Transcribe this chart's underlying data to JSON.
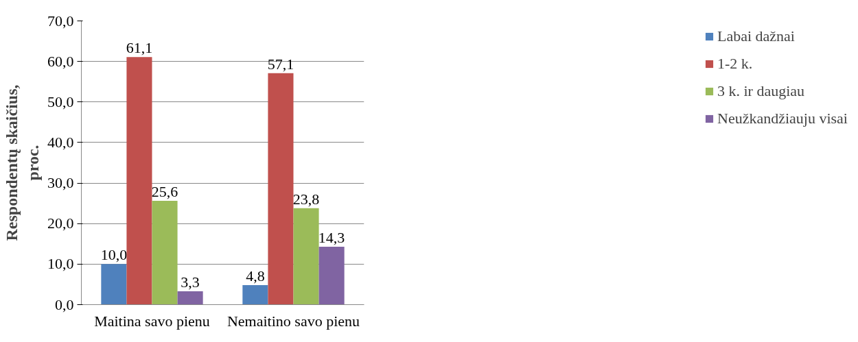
{
  "chart_data": {
    "type": "bar",
    "ylabel": "Respondentų skaičius, proc.",
    "categories": [
      "Maitina savo pienu",
      "Nemaitino savo pienu"
    ],
    "series": [
      {
        "name": "Labai dažnai",
        "color": "#4f81bd",
        "values": [
          10.0,
          4.8
        ],
        "value_labels": [
          "10,0",
          "4,8"
        ]
      },
      {
        "name": "1-2 k.",
        "color": "#c0504d",
        "values": [
          61.1,
          57.1
        ],
        "value_labels": [
          "61,1",
          "57,1"
        ]
      },
      {
        "name": "3 k. ir daugiau",
        "color": "#9bbb59",
        "values": [
          25.6,
          23.8
        ],
        "value_labels": [
          "25,6",
          "23,8"
        ]
      },
      {
        "name": "Neužkandžiauju visai",
        "color": "#8064a2",
        "values": [
          3.3,
          14.3
        ],
        "value_labels": [
          "3,3",
          "14,3"
        ]
      }
    ],
    "ylim": [
      0,
      70
    ],
    "yticks": [
      {
        "value": 0,
        "label": "0,0"
      },
      {
        "value": 10,
        "label": "10,0"
      },
      {
        "value": 20,
        "label": "20,0"
      },
      {
        "value": 30,
        "label": "30,0"
      },
      {
        "value": 40,
        "label": "40,0"
      },
      {
        "value": 50,
        "label": "50,0"
      },
      {
        "value": 60,
        "label": "60,0"
      },
      {
        "value": 70,
        "label": "70,0"
      }
    ],
    "grid": "y",
    "legend": "right"
  }
}
